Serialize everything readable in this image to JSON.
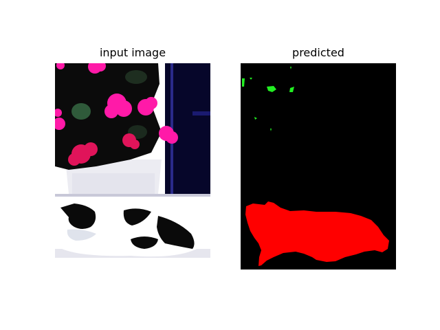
{
  "figure": {
    "left_title": "input image",
    "right_title": "predicted"
  },
  "colors": {
    "prediction_cat": "#ff0000",
    "prediction_plant": "#22ee22",
    "prediction_background": "#000000",
    "flowers": "#ff1aa8",
    "foliage": "#0b0b0b",
    "wall": "#ffffff",
    "window": "#06062a"
  }
}
